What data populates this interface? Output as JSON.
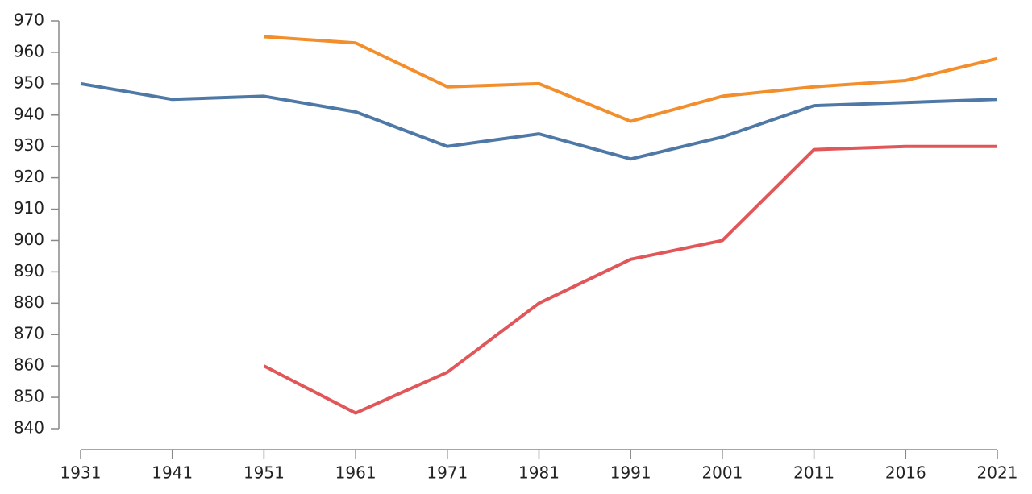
{
  "chart_data": {
    "type": "line",
    "categories": [
      "1931",
      "1941",
      "1951",
      "1961",
      "1971",
      "1981",
      "1991",
      "2001",
      "2011",
      "2016",
      "2021"
    ],
    "series": [
      {
        "color": "#4e79a7",
        "values": [
          950,
          945,
          946,
          941,
          930,
          934,
          926,
          933,
          943,
          944,
          945
        ]
      },
      {
        "color": "#f28e2b",
        "values": [
          null,
          null,
          965,
          963,
          949,
          950,
          938,
          946,
          949,
          951,
          958
        ]
      },
      {
        "color": "#e15759",
        "values": [
          null,
          null,
          860,
          845,
          858,
          880,
          894,
          900,
          929,
          930,
          930
        ]
      }
    ],
    "ylim": [
      840,
      970
    ],
    "yticks": [
      840,
      850,
      860,
      870,
      880,
      890,
      900,
      910,
      920,
      930,
      940,
      950,
      960,
      970
    ],
    "grid": false
  }
}
